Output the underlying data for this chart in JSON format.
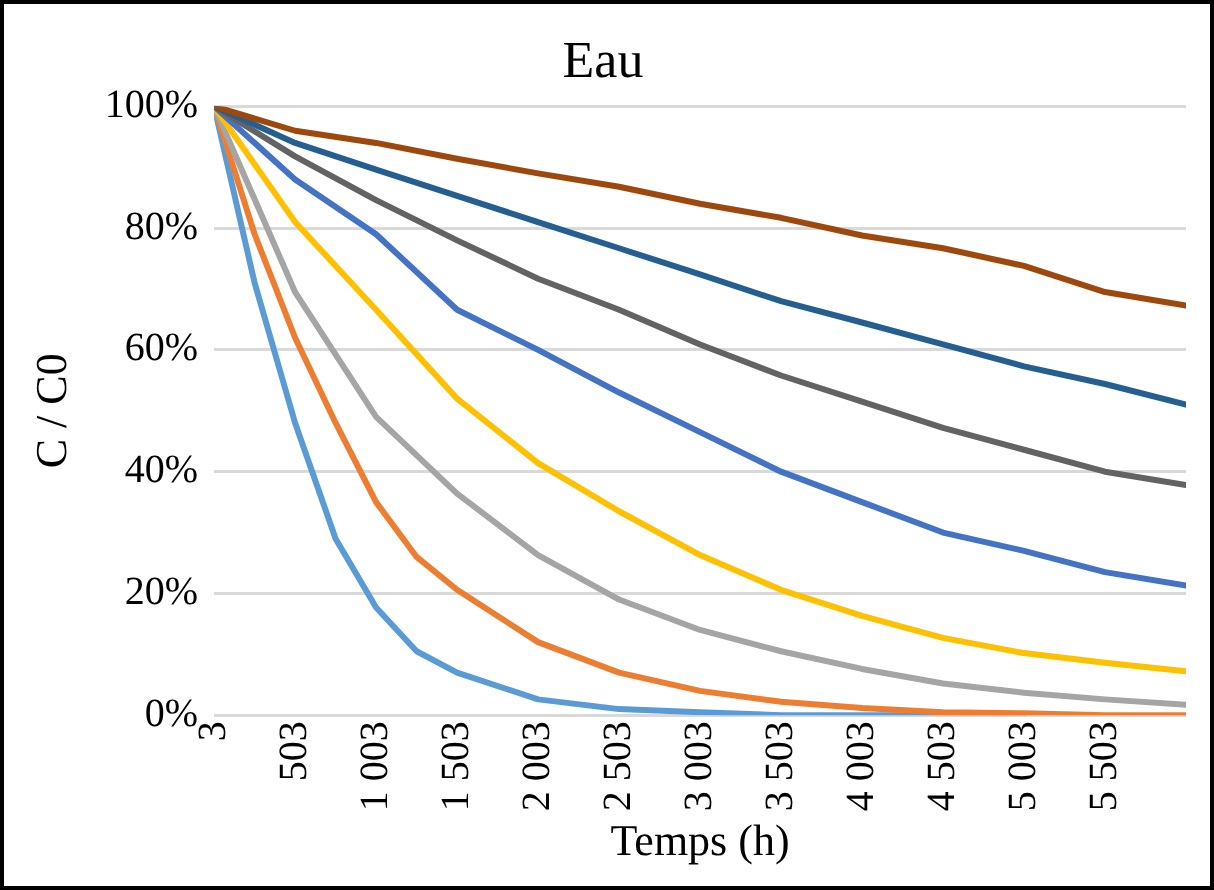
{
  "chart_data": {
    "type": "line",
    "title": "Eau",
    "xlabel": "Temps (h)",
    "ylabel": "C / C0",
    "x": [
      3,
      503,
      1003,
      1503,
      2003,
      2503,
      3003,
      3503,
      4003,
      4503,
      5003,
      5503,
      6003
    ],
    "series": [
      {
        "color": "#5b9bd5",
        "x": [
          3,
          253,
          503,
          753,
          1003,
          1253,
          1503,
          2003,
          2503,
          3003,
          3503,
          4003,
          4503,
          5003
        ],
        "values": [
          100,
          71,
          48,
          29,
          17.7,
          10.5,
          7,
          2.6,
          1,
          0.5,
          0,
          0,
          0,
          0
        ]
      },
      {
        "color": "#ed7d31",
        "x": [
          3,
          253,
          503,
          753,
          1003,
          1253,
          1503,
          2003,
          2503,
          3003,
          3503,
          4003,
          4503,
          5003,
          5503,
          6003
        ],
        "values": [
          100,
          79,
          62,
          48,
          35,
          26,
          20.6,
          12,
          7,
          4,
          2.2,
          1.2,
          0.5,
          0.3,
          0,
          0
        ]
      },
      {
        "color": "#a5a5a5",
        "values": [
          100,
          69.5,
          49,
          36.4,
          26.3,
          19,
          14,
          10.5,
          7.6,
          5.2,
          3.7,
          2.6,
          1.7
        ]
      },
      {
        "color": "#ffc000",
        "values": [
          100,
          81,
          66.6,
          52,
          41.4,
          33.5,
          26.3,
          20.6,
          16.3,
          12.7,
          10.2,
          8.6,
          7.2
        ]
      },
      {
        "color": "#4472c4",
        "values": [
          100,
          88,
          79,
          66.6,
          60,
          53,
          46.5,
          40,
          35,
          30,
          27,
          23.5,
          21.3
        ]
      },
      {
        "color": "#636363",
        "values": [
          100,
          91.8,
          84.6,
          78,
          71.7,
          66.6,
          60.9,
          55.8,
          51.5,
          47.2,
          43.6,
          40,
          37.8
        ]
      },
      {
        "color": "#255e91",
        "values": [
          100,
          94,
          89.6,
          85.3,
          81,
          76.7,
          72.4,
          68,
          64.5,
          60.9,
          57.3,
          54.4,
          51
        ]
      },
      {
        "color": "#9e480e",
        "values": [
          100,
          96,
          94,
          91.4,
          89,
          86.8,
          84,
          81.7,
          78.8,
          76.7,
          73.8,
          69.5,
          67.3
        ]
      }
    ],
    "xlim": [
      3,
      6003
    ],
    "xticks": [
      3,
      503,
      {
        "value": 1003,
        "label": "1 003"
      },
      {
        "value": 1503,
        "label": "1 503"
      },
      {
        "value": 2003,
        "label": "2 003"
      },
      {
        "value": 2503,
        "label": "2 503"
      },
      {
        "value": 3003,
        "label": "3 003"
      },
      {
        "value": 3503,
        "label": "3 503"
      },
      {
        "value": 4003,
        "label": "4 003"
      },
      {
        "value": 4503,
        "label": "4 503"
      },
      {
        "value": 5003,
        "label": "5 003"
      },
      {
        "value": 5503,
        "label": "5 503"
      }
    ],
    "ylim": [
      0,
      100
    ],
    "yticks": [
      {
        "value": 0,
        "label": "0%"
      },
      {
        "value": 20,
        "label": "20%"
      },
      {
        "value": 40,
        "label": "40%"
      },
      {
        "value": 60,
        "label": "60%"
      },
      {
        "value": 80,
        "label": "80%"
      },
      {
        "value": 100,
        "label": "100%"
      }
    ],
    "grid": "y",
    "legend": false,
    "marker": "none",
    "line_style": "solid"
  }
}
